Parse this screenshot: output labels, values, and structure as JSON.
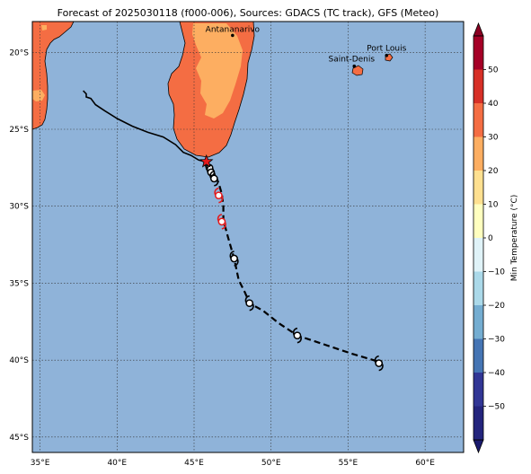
{
  "title": "Forecast of 2025030118 (f000-006), Sources: GDACS (TC track), GFS (Meteo)",
  "map": {
    "lon_range": [
      34.5,
      62.5
    ],
    "lat_range": [
      -46,
      -18
    ],
    "lon_ticks": [
      35,
      40,
      45,
      50,
      55,
      60
    ],
    "lon_tick_labels": [
      "35°E",
      "40°E",
      "45°E",
      "50°E",
      "55°E",
      "60°E"
    ],
    "lat_ticks": [
      -20,
      -25,
      -30,
      -35,
      -40,
      -45
    ],
    "lat_tick_labels": [
      "20°S",
      "25°S",
      "30°S",
      "35°S",
      "40°S",
      "45°S"
    ],
    "ocean_color": "#8fb3d9",
    "land_color": "#f46d43",
    "warm_land_color": "#fdae61"
  },
  "cities": [
    {
      "name": "Antananarivo",
      "lon": 47.5,
      "lat": -18.9
    },
    {
      "name": "Port Louis",
      "lon": 57.5,
      "lat": -20.2
    },
    {
      "name": "Saint-Denis",
      "lon": 55.4,
      "lat": -20.9
    }
  ],
  "track": {
    "past": [
      [
        37.8,
        -22.5
      ],
      [
        38.0,
        -22.7
      ],
      [
        38.0,
        -22.9
      ],
      [
        38.3,
        -23.0
      ],
      [
        38.6,
        -23.4
      ],
      [
        39.2,
        -23.8
      ],
      [
        40.0,
        -24.3
      ],
      [
        41.0,
        -24.8
      ],
      [
        42.0,
        -25.2
      ],
      [
        43.0,
        -25.5
      ],
      [
        43.8,
        -26.0
      ],
      [
        44.3,
        -26.5
      ],
      [
        44.8,
        -26.7
      ],
      [
        45.3,
        -27.0
      ],
      [
        45.7,
        -27.1
      ],
      [
        46.1,
        -27.5
      ],
      [
        46.4,
        -28.1
      ]
    ],
    "forecast": [
      [
        46.4,
        -28.1
      ],
      [
        46.6,
        -28.5
      ],
      [
        46.8,
        -29.2
      ],
      [
        46.9,
        -30.0
      ],
      [
        46.9,
        -30.9
      ],
      [
        47.2,
        -32.0
      ],
      [
        47.6,
        -33.4
      ],
      [
        47.9,
        -34.8
      ],
      [
        48.3,
        -35.6
      ],
      [
        48.6,
        -36.3
      ],
      [
        49.5,
        -36.8
      ],
      [
        50.5,
        -37.6
      ],
      [
        51.7,
        -38.4
      ],
      [
        53.5,
        -39.0
      ],
      [
        55.3,
        -39.6
      ],
      [
        57.0,
        -40.1
      ]
    ],
    "current_position": {
      "lon": 45.8,
      "lat": -27.1
    },
    "storm_markers": [
      {
        "lon": 46.0,
        "lat": -27.5,
        "color": "#000000"
      },
      {
        "lon": 46.1,
        "lat": -27.8,
        "color": "#000000"
      },
      {
        "lon": 46.3,
        "lat": -28.2,
        "color": "#000000"
      },
      {
        "lon": 46.6,
        "lat": -29.3,
        "color": "#e41a1c"
      },
      {
        "lon": 46.8,
        "lat": -31.0,
        "color": "#e41a1c"
      },
      {
        "lon": 47.6,
        "lat": -33.4,
        "color": "#000000"
      },
      {
        "lon": 48.6,
        "lat": -36.3,
        "color": "#000000"
      },
      {
        "lon": 51.7,
        "lat": -38.4,
        "color": "#000000"
      },
      {
        "lon": 57.0,
        "lat": -40.2,
        "color": "#000000"
      }
    ]
  },
  "colorbar": {
    "label": "Min Temperature (°C)",
    "tick_values": [
      50,
      40,
      30,
      20,
      10,
      0,
      -10,
      -20,
      -30,
      -40,
      -50
    ],
    "tick_labels": [
      "50",
      "40",
      "30",
      "20",
      "10",
      "0",
      "−10",
      "−20",
      "−30",
      "−40",
      "−50"
    ],
    "bin_colors": [
      "#a50026",
      "#d73027",
      "#f46d43",
      "#fdae61",
      "#fee090",
      "#ffffbf",
      "#e0f3f8",
      "#abd9e9",
      "#74add1",
      "#4575b4",
      "#313695",
      "#23247d"
    ],
    "extend_top_color": "#8b0022",
    "extend_bottom_color": "#1a1a6e"
  }
}
